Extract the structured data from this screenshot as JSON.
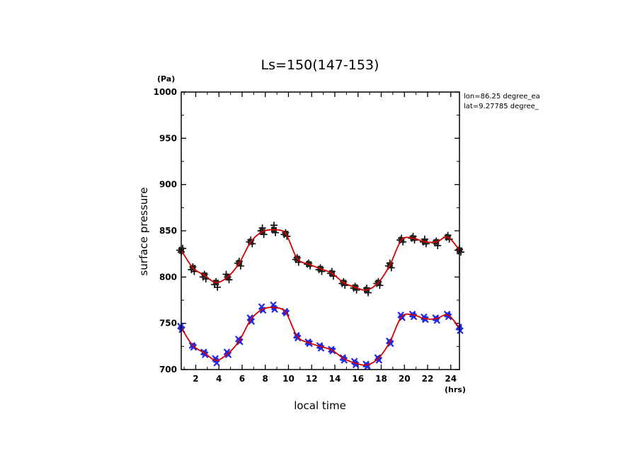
{
  "chart_data": {
    "type": "line",
    "title": "Ls=150(147-153)",
    "xlabel": "local time",
    "ylabel": "surface pressure",
    "x_unit": "(hrs)",
    "y_unit": "(Pa)",
    "xlim": [
      0.75,
      24.75
    ],
    "ylim": [
      700,
      1000
    ],
    "xticks": [
      2,
      4,
      6,
      8,
      10,
      12,
      14,
      16,
      18,
      20,
      22,
      24
    ],
    "yticks": [
      700,
      750,
      800,
      850,
      900,
      950,
      1000
    ],
    "annotations": [
      "lon=86.25 degree_ea",
      "lat=9.27785 degree_"
    ],
    "x": [
      0.75,
      1.75,
      2.75,
      3.75,
      4.75,
      5.75,
      6.75,
      7.75,
      8.75,
      9.75,
      10.75,
      11.75,
      12.75,
      13.75,
      14.75,
      15.75,
      16.75,
      17.75,
      18.75,
      19.75,
      20.75,
      21.75,
      22.75,
      23.75,
      24.75
    ],
    "series": [
      {
        "values": [
          829,
          810,
          802,
          794,
          800,
          815,
          838,
          849,
          851,
          847,
          820,
          814,
          809,
          804,
          794,
          789,
          786,
          794,
          813,
          840,
          842,
          838,
          838,
          843,
          829
        ],
        "scatter": [
          [
            829,
            827,
            831
          ],
          [
            808,
            811,
            806
          ],
          [
            800,
            803,
            798
          ],
          [
            792,
            795,
            789
          ],
          [
            803,
            800,
            797
          ],
          [
            815,
            817,
            812
          ],
          [
            838,
            840,
            836
          ],
          [
            850,
            853,
            846
          ],
          [
            851,
            856,
            848
          ],
          [
            846,
            848,
            844
          ],
          [
            819,
            821,
            816
          ],
          [
            814,
            815,
            812
          ],
          [
            808,
            810,
            806
          ],
          [
            804,
            806,
            801
          ],
          [
            793,
            795,
            791
          ],
          [
            788,
            790,
            786
          ],
          [
            786,
            788,
            783
          ],
          [
            793,
            795,
            791
          ],
          [
            812,
            815,
            810
          ],
          [
            840,
            842,
            838
          ],
          [
            842,
            844,
            840
          ],
          [
            838,
            841,
            836
          ],
          [
            837,
            839,
            834
          ],
          [
            843,
            845,
            841
          ],
          [
            829,
            830,
            827
          ]
        ],
        "color": "#d40000",
        "marker_color": "#000000"
      },
      {
        "values": [
          745,
          726,
          718,
          710,
          717,
          731,
          754,
          765,
          767,
          762,
          736,
          729,
          725,
          721,
          712,
          707,
          705,
          712,
          730,
          757,
          759,
          755,
          755,
          759,
          745
        ],
        "scatter": [
          [
            747,
            743
          ],
          [
            726,
            724
          ],
          [
            719,
            716
          ],
          [
            712,
            707
          ],
          [
            719,
            716
          ],
          [
            733,
            730
          ],
          [
            756,
            752
          ],
          [
            768,
            764
          ],
          [
            770,
            765
          ],
          [
            763,
            761
          ],
          [
            737,
            734
          ],
          [
            730,
            728
          ],
          [
            726,
            723
          ],
          [
            722,
            720
          ],
          [
            713,
            710
          ],
          [
            709,
            705
          ],
          [
            706,
            703
          ],
          [
            713,
            710
          ],
          [
            731,
            728
          ],
          [
            759,
            756
          ],
          [
            760,
            757
          ],
          [
            757,
            754
          ],
          [
            756,
            753
          ],
          [
            760,
            757
          ],
          [
            746,
            742
          ]
        ],
        "color": "#d40000",
        "marker_color": "#1f28e6"
      }
    ]
  }
}
